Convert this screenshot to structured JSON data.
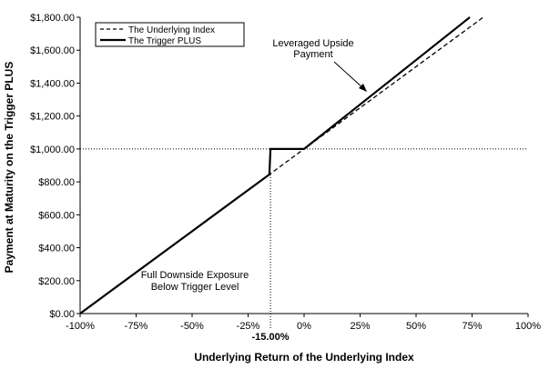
{
  "chart_data": {
    "type": "line",
    "xlabel": "Underlying Return of the Underlying Index",
    "ylabel": "Payment at Maturity on the Trigger PLUS",
    "xlim": [
      -100,
      100
    ],
    "ylim": [
      0,
      1800
    ],
    "x_tick_labels": [
      "-100%",
      "-75%",
      "-50%",
      "-25%",
      "0%",
      "25%",
      "50%",
      "75%",
      "100%"
    ],
    "x_tick_values": [
      -100,
      -75,
      -50,
      -25,
      0,
      25,
      50,
      75,
      100
    ],
    "y_tick_labels": [
      "$0.00",
      "$200.00",
      "$400.00",
      "$600.00",
      "$800.00",
      "$1,000.00",
      "$1,200.00",
      "$1,400.00",
      "$1,600.00",
      "$1,800.00"
    ],
    "y_tick_values": [
      0,
      200,
      400,
      600,
      800,
      1000,
      1200,
      1400,
      1600,
      1800
    ],
    "grid": false,
    "legend_position": "top-left",
    "series": [
      {
        "name": "The Underlying Index",
        "style": "dashed",
        "color": "#000000",
        "x": [
          -100,
          80
        ],
        "y": [
          0,
          1800
        ]
      },
      {
        "name": "The Trigger PLUS",
        "style": "solid",
        "color": "#000000",
        "x": [
          -100,
          -15.5,
          -15,
          0,
          74
        ],
        "y": [
          0,
          845,
          1000,
          1000,
          1800
        ]
      }
    ],
    "reference_lines": [
      {
        "orientation": "horizontal",
        "y": 1000,
        "style": "dotted"
      },
      {
        "orientation": "vertical",
        "x": -15,
        "style": "dotted"
      }
    ],
    "annotations": {
      "trigger_label": "-15.00%",
      "upside_line1": "Leveraged Upside",
      "upside_line2": "Payment",
      "downside_line1": "Full Downside Exposure",
      "downside_line2": "Below Trigger Level"
    }
  }
}
